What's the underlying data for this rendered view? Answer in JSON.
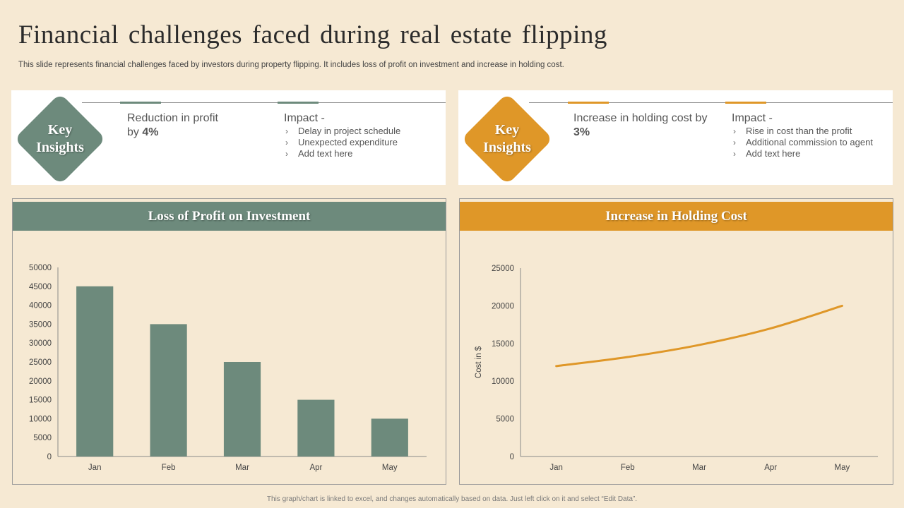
{
  "page": {
    "title": "Financial challenges faced during real estate flipping",
    "subtitle": "This slide represents financial challenges faced by investors during property flipping. It includes loss of profit on investment and increase in holding cost.",
    "footer": "This graph/chart is linked to excel, and changes automatically based on data. Just left click on it and select “Edit Data”."
  },
  "colors": {
    "green": "#6d8a7c",
    "orange": "#df9728",
    "background": "#f6e9d3"
  },
  "insights": [
    {
      "badge_line1": "Key",
      "badge_line2": "Insights",
      "stat_text": "Reduction in profit by",
      "stat_value": "4%",
      "impact_title": "Impact -",
      "impact_items": [
        "Delay in project schedule",
        "Unexpected expenditure",
        "Add text here"
      ]
    },
    {
      "badge_line1": "Key",
      "badge_line2": "Insights",
      "stat_text": "Increase in holding cost by",
      "stat_value": "3%",
      "impact_title": "Impact -",
      "impact_items": [
        "Rise in cost than the profit",
        "Additional commission to agent",
        "Add text here"
      ]
    }
  ],
  "chart_data": [
    {
      "type": "bar",
      "title": "Loss of Profit on Investment",
      "categories": [
        "Jan",
        "Feb",
        "Mar",
        "Apr",
        "May"
      ],
      "values": [
        45000,
        35000,
        25000,
        15000,
        10000
      ],
      "yticks": [
        0,
        5000,
        10000,
        15000,
        20000,
        25000,
        30000,
        35000,
        40000,
        45000,
        50000
      ],
      "xlabel": "",
      "ylabel": "",
      "ylim": [
        0,
        50000
      ],
      "grid": false,
      "color": "#6d8a7c"
    },
    {
      "type": "line",
      "title": "Increase in Holding Cost",
      "categories": [
        "Jan",
        "Feb",
        "Mar",
        "Apr",
        "May"
      ],
      "values": [
        12000,
        13200,
        14800,
        17000,
        20000
      ],
      "yticks": [
        0,
        5000,
        10000,
        15000,
        20000,
        25000
      ],
      "xlabel": "",
      "ylabel": "Cost in $",
      "ylim": [
        0,
        25000
      ],
      "grid": false,
      "color": "#df9728"
    }
  ]
}
